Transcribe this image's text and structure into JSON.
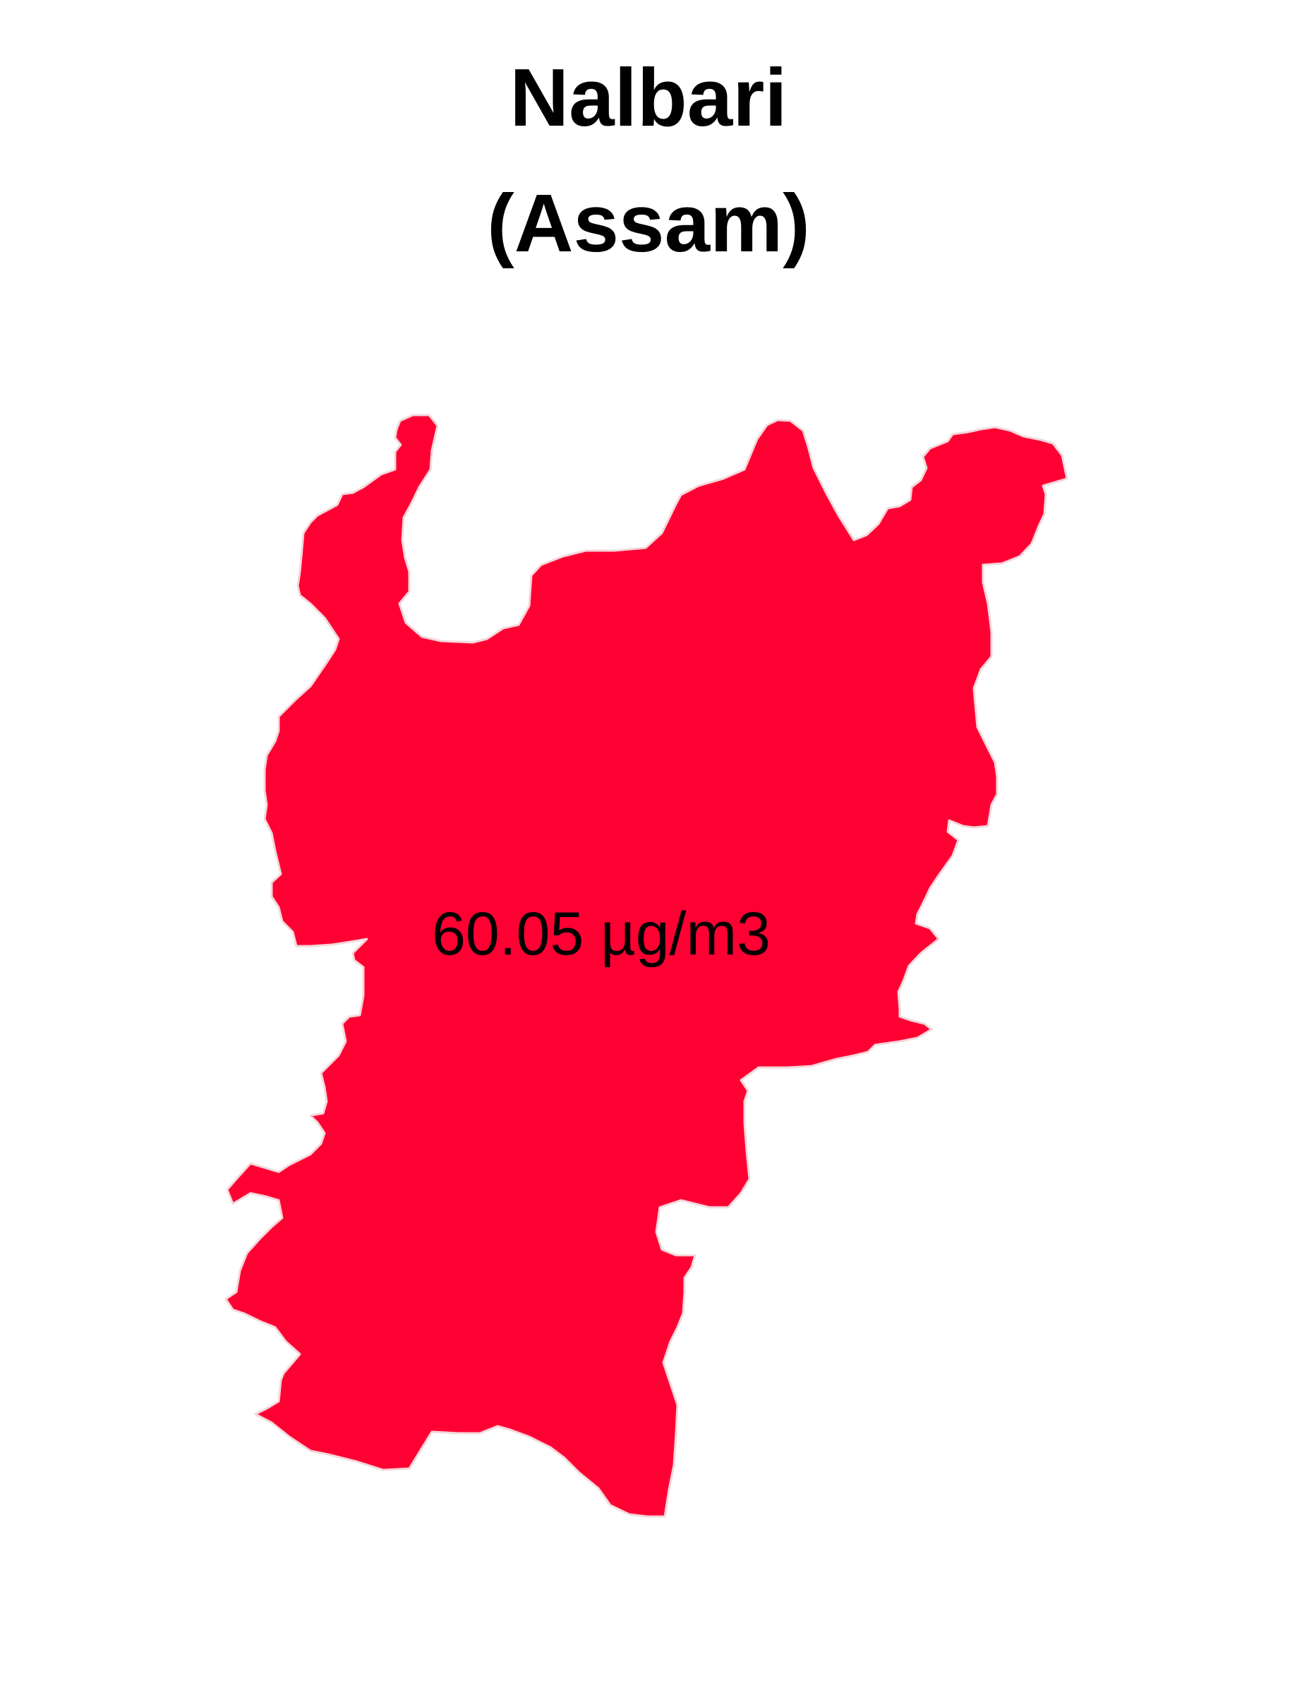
{
  "map": {
    "district": "Nalbari",
    "state": "(Assam)",
    "value_label": "60.05 µg/m3",
    "fill_color": "#ff0033",
    "border_color": "#f4d6da",
    "background": "#ffffff"
  }
}
